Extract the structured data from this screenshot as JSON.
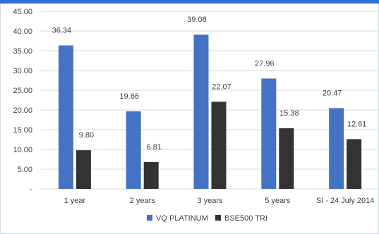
{
  "chart_data": {
    "type": "bar",
    "categories": [
      "1 year",
      "2 years",
      "3 years",
      "5 years",
      "SI - 24 July 2014"
    ],
    "series": [
      {
        "name": "VQ PLATINUM",
        "values": [
          36.34,
          19.66,
          39.08,
          27.96,
          20.47
        ],
        "labels": [
          "36.34",
          "19.66",
          "39.08",
          "27.96",
          "20.47"
        ],
        "color": "#4472c4"
      },
      {
        "name": "BSE500 TRI",
        "values": [
          9.8,
          6.81,
          22.07,
          15.38,
          12.61
        ],
        "labels": [
          "9.80",
          "6.81",
          "22.07",
          "15.38",
          "12.61"
        ],
        "color": "#333333"
      }
    ],
    "yticks": [
      "-",
      "5.00",
      "10.00",
      "15.00",
      "20.00",
      "25.00",
      "30.00",
      "35.00",
      "40.00",
      "45.00"
    ],
    "ylim": [
      0,
      45
    ],
    "grid": true,
    "legend_position": "bottom",
    "title": "",
    "xlabel": "",
    "ylabel": ""
  },
  "colors": {
    "accent": "#2f6fd6",
    "gridline": "#d9d9d9",
    "border": "#cfd8e6"
  }
}
